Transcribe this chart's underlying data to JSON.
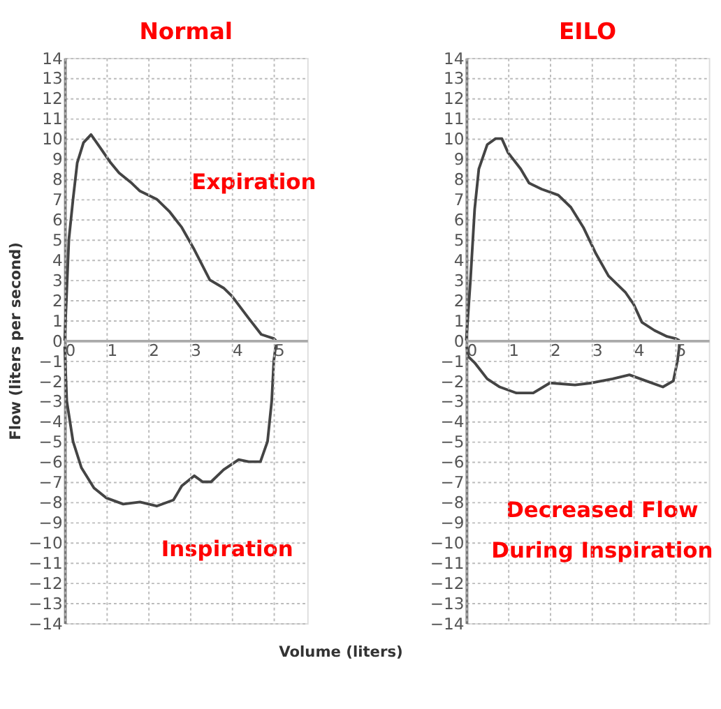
{
  "chart_data": [
    {
      "type": "line",
      "title": "Normal",
      "xlabel": "Volume (liters)",
      "ylabel": "Flow (liters per second)",
      "xlim": [
        0,
        5.8
      ],
      "ylim": [
        -14,
        14
      ],
      "xticks": [
        0,
        1,
        2,
        3,
        4,
        5
      ],
      "yticks": [
        -14,
        -13,
        -12,
        -11,
        -10,
        -9,
        -8,
        -7,
        -6,
        -5,
        -4,
        -3,
        -2,
        -1,
        0,
        1,
        2,
        3,
        4,
        5,
        6,
        7,
        8,
        9,
        10,
        11,
        12,
        13,
        14
      ],
      "grid": true,
      "series": [
        {
          "color": "#444444",
          "x": [
            0,
            0.05,
            0.1,
            0.2,
            0.3,
            0.45,
            0.63,
            0.8,
            1.1,
            1.3,
            1.6,
            1.8,
            2.2,
            2.5,
            2.8,
            3.1,
            3.47,
            3.8,
            4.0,
            4.4,
            4.7,
            5.0,
            5.05
          ],
          "values": [
            0,
            2.5,
            5,
            7,
            8.8,
            9.8,
            10.2,
            9.7,
            8.8,
            8.3,
            7.8,
            7.4,
            7.0,
            6.4,
            5.6,
            4.5,
            3.0,
            2.6,
            2.2,
            1.1,
            0.3,
            0.1,
            0
          ]
        },
        {
          "color": "#444444",
          "x": [
            0,
            0.05,
            0.2,
            0.4,
            0.7,
            1.0,
            1.4,
            1.8,
            2.2,
            2.6,
            2.8,
            3.1,
            3.3,
            3.5,
            3.8,
            4.16,
            4.4,
            4.68,
            4.85,
            4.95,
            5.0,
            5.05
          ],
          "values": [
            -0.3,
            -3,
            -5.0,
            -6.3,
            -7.3,
            -7.8,
            -8.1,
            -8.0,
            -8.2,
            -7.9,
            -7.2,
            -6.7,
            -7.0,
            -7.0,
            -6.4,
            -5.9,
            -6.0,
            -6.0,
            -5,
            -3,
            -1,
            -0.2
          ]
        }
      ],
      "annotations": [
        "Expiration",
        "Inspiration"
      ]
    },
    {
      "type": "line",
      "title": "EILO",
      "xlim": [
        0,
        5.8
      ],
      "ylim": [
        -14,
        14
      ],
      "xticks": [
        0,
        1,
        2,
        3,
        4,
        5
      ],
      "yticks": [
        -14,
        -13,
        -12,
        -11,
        -10,
        -9,
        -8,
        -7,
        -6,
        -5,
        -4,
        -3,
        -2,
        -1,
        0,
        1,
        2,
        3,
        4,
        5,
        6,
        7,
        8,
        9,
        10,
        11,
        12,
        13,
        14
      ],
      "grid": true,
      "series": [
        {
          "color": "#444444",
          "x": [
            0,
            0.1,
            0.2,
            0.3,
            0.5,
            0.7,
            0.85,
            1.0,
            1.3,
            1.5,
            1.8,
            2.2,
            2.5,
            2.8,
            3.1,
            3.4,
            3.8,
            4.0,
            4.2,
            4.5,
            4.8,
            5.0,
            5.1
          ],
          "values": [
            0,
            3,
            6.5,
            8.5,
            9.7,
            10,
            10,
            9.3,
            8.5,
            7.8,
            7.5,
            7.2,
            6.6,
            5.6,
            4.3,
            3.2,
            2.4,
            1.8,
            0.9,
            0.5,
            0.2,
            0.1,
            0
          ]
        },
        {
          "color": "#444444",
          "x": [
            0.01,
            0.05,
            0.2,
            0.5,
            0.8,
            1.2,
            1.6,
            2.0,
            2.6,
            3.0,
            3.5,
            3.9,
            4.3,
            4.7,
            4.95,
            5.05,
            5.1
          ],
          "values": [
            -0.3,
            -0.8,
            -1.1,
            -1.9,
            -2.3,
            -2.6,
            -2.6,
            -2.1,
            -2.2,
            -2.1,
            -1.9,
            -1.7,
            -2.0,
            -2.3,
            -2.0,
            -1,
            -0.2
          ]
        }
      ],
      "annotations": [
        "Decreased Flow\nDuring Inspiration"
      ]
    }
  ]
}
